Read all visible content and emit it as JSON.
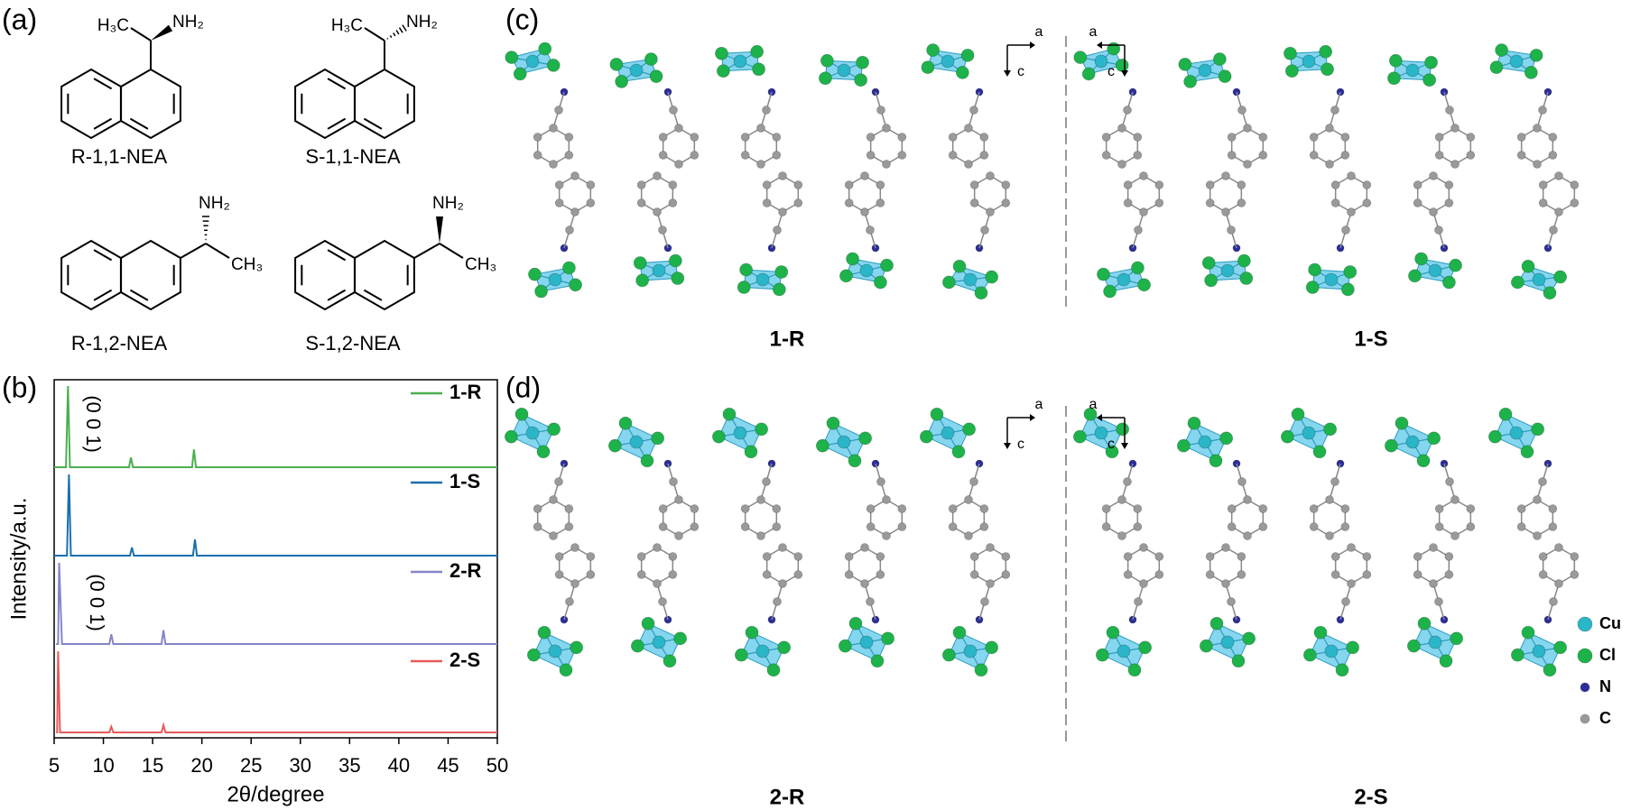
{
  "panel_labels": [
    "(a)",
    "(b)",
    "(c)",
    "(d)"
  ],
  "molecules": [
    {
      "name": "R-1,1-NEA",
      "groups": [
        "H₃C",
        "NH₂"
      ]
    },
    {
      "name": "S-1,1-NEA",
      "groups": [
        "H₃C",
        "NH₂"
      ]
    },
    {
      "name": "R-1,2-NEA",
      "groups": [
        "NH₂",
        "CH₃"
      ]
    },
    {
      "name": "S-1,2-NEA",
      "groups": [
        "NH₂",
        "CH₃"
      ]
    }
  ],
  "chart_data": {
    "type": "line",
    "xlabel": "2θ/degree",
    "ylabel": "Intensity/a.u.",
    "xlim": [
      5,
      50
    ],
    "xticks": [
      5,
      10,
      15,
      20,
      25,
      30,
      35,
      40,
      45,
      50
    ],
    "annotations": [
      "(0 0 1)",
      "(0 0 1)"
    ],
    "series": [
      {
        "name": "1-R",
        "color": "#4caf50",
        "x": [
          5,
          6.2,
          6.4,
          6.6,
          12.6,
          12.8,
          13.0,
          19.0,
          19.2,
          19.4,
          50
        ],
        "values": [
          0,
          0,
          100,
          0,
          0,
          12,
          0,
          0,
          22,
          0,
          0
        ]
      },
      {
        "name": "1-S",
        "color": "#1a6fae",
        "x": [
          5,
          6.3,
          6.5,
          6.7,
          12.7,
          12.9,
          13.1,
          19.1,
          19.3,
          19.5,
          50
        ],
        "values": [
          0,
          0,
          100,
          0,
          0,
          10,
          0,
          0,
          20,
          0,
          0
        ]
      },
      {
        "name": "2-R",
        "color": "#8585c8",
        "x": [
          5.2,
          5.4,
          5.5,
          5.8,
          10.6,
          10.8,
          11.0,
          15.9,
          16.1,
          16.3,
          50
        ],
        "values": [
          0,
          0,
          100,
          0,
          0,
          12,
          0,
          0,
          17,
          0,
          0
        ]
      },
      {
        "name": "2-S",
        "color": "#e85a5a",
        "x": [
          5.2,
          5.3,
          5.4,
          5.6,
          10.6,
          10.8,
          11.0,
          15.9,
          16.1,
          16.3,
          50
        ],
        "values": [
          0,
          0,
          100,
          0,
          0,
          7,
          0,
          0,
          9,
          0,
          0
        ]
      }
    ]
  },
  "crystals": [
    "1-R",
    "1-S",
    "2-R",
    "2-S"
  ],
  "axis_letters": [
    "a",
    "c"
  ],
  "atom_legend": [
    {
      "name": "Cu",
      "color": "#2bb5c8"
    },
    {
      "name": "Cl",
      "color": "#1db34a"
    },
    {
      "name": "N",
      "color": "#2c2c9c"
    },
    {
      "name": "C",
      "color": "#9a9a9a"
    }
  ]
}
